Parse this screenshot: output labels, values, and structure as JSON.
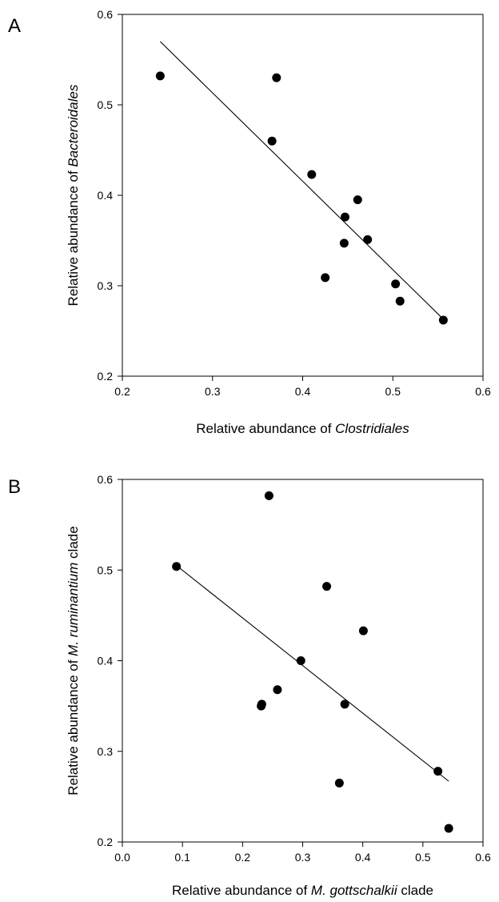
{
  "chart_data": [
    {
      "type": "scatter",
      "panel_label": "A",
      "xlabel_parts": [
        {
          "text": "Relative abundance of ",
          "italic": false
        },
        {
          "text": "Clostridiales",
          "italic": true
        }
      ],
      "ylabel_parts": [
        {
          "text": "Relative abundance of ",
          "italic": false
        },
        {
          "text": "Bacteroidales",
          "italic": true
        }
      ],
      "xlim": [
        0.2,
        0.6
      ],
      "ylim": [
        0.2,
        0.6
      ],
      "xticks": [
        "0.2",
        "0.3",
        "0.4",
        "0.5",
        "0.6"
      ],
      "yticks": [
        "0.2",
        "0.3",
        "0.4",
        "0.5",
        "0.6"
      ],
      "grid": false,
      "points": [
        {
          "x": 0.242,
          "y": 0.532
        },
        {
          "x": 0.371,
          "y": 0.53
        },
        {
          "x": 0.366,
          "y": 0.46
        },
        {
          "x": 0.41,
          "y": 0.423
        },
        {
          "x": 0.461,
          "y": 0.395
        },
        {
          "x": 0.447,
          "y": 0.376
        },
        {
          "x": 0.472,
          "y": 0.351
        },
        {
          "x": 0.446,
          "y": 0.347
        },
        {
          "x": 0.425,
          "y": 0.309
        },
        {
          "x": 0.503,
          "y": 0.302
        },
        {
          "x": 0.508,
          "y": 0.283
        },
        {
          "x": 0.556,
          "y": 0.262
        }
      ],
      "fit_line": [
        {
          "x": 0.242,
          "y": 0.57
        },
        {
          "x": 0.556,
          "y": 0.263
        }
      ]
    },
    {
      "type": "scatter",
      "panel_label": "B",
      "xlabel_parts": [
        {
          "text": "Relative abundance of ",
          "italic": false
        },
        {
          "text": "M. gottschalkii",
          "italic": true
        },
        {
          "text": " clade",
          "italic": false
        }
      ],
      "ylabel_parts": [
        {
          "text": "Relative abundance of ",
          "italic": false
        },
        {
          "text": "M. ruminantium",
          "italic": true
        },
        {
          "text": " clade",
          "italic": false
        }
      ],
      "xlim": [
        0.0,
        0.6
      ],
      "ylim": [
        0.2,
        0.6
      ],
      "xticks": [
        "0.0",
        "0.1",
        "0.2",
        "0.3",
        "0.4",
        "0.5",
        "0.6"
      ],
      "yticks": [
        "0.2",
        "0.3",
        "0.4",
        "0.5",
        "0.6"
      ],
      "grid": false,
      "points": [
        {
          "x": 0.244,
          "y": 0.582
        },
        {
          "x": 0.09,
          "y": 0.504
        },
        {
          "x": 0.34,
          "y": 0.482
        },
        {
          "x": 0.401,
          "y": 0.433
        },
        {
          "x": 0.297,
          "y": 0.4
        },
        {
          "x": 0.258,
          "y": 0.368
        },
        {
          "x": 0.232,
          "y": 0.352
        },
        {
          "x": 0.231,
          "y": 0.35
        },
        {
          "x": 0.37,
          "y": 0.352
        },
        {
          "x": 0.525,
          "y": 0.278
        },
        {
          "x": 0.361,
          "y": 0.265
        },
        {
          "x": 0.543,
          "y": 0.215
        }
      ],
      "fit_line": [
        {
          "x": 0.09,
          "y": 0.505
        },
        {
          "x": 0.543,
          "y": 0.267
        }
      ]
    }
  ]
}
